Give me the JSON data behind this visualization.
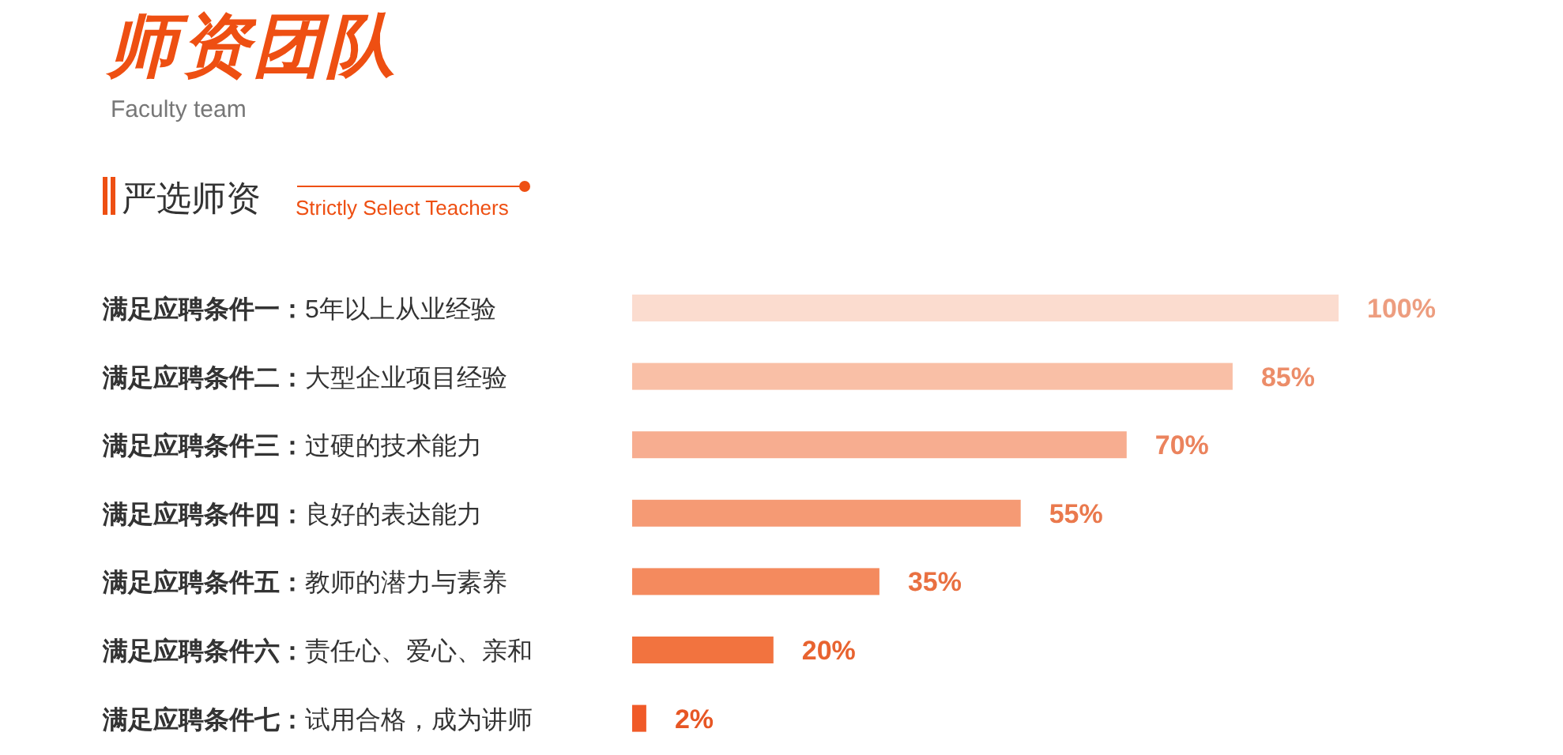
{
  "chart_data": {
    "type": "bar",
    "orientation": "horizontal",
    "title": "师资团队",
    "subtitle": "Faculty team",
    "annotations": [
      "严选师资",
      "Strictly Select Teachers"
    ],
    "categories": [
      "满足应聘条件一：5年以上从业经验",
      "满足应聘条件二：大型企业项目经验",
      "满足应聘条件三：过硬的技术能力",
      "满足应聘条件四：良好的表达能力",
      "满足应聘条件五：教师的潜力与素养",
      "满足应聘条件六：责任心、爱心、亲和",
      "满足应聘条件七：试用合格，成为讲师"
    ],
    "values": [
      100,
      85,
      70,
      55,
      35,
      20,
      2
    ],
    "value_labels": [
      "100%",
      "85%",
      "70%",
      "55%",
      "35%",
      "20%",
      "2%"
    ],
    "colors": [
      "#fbdccf",
      "#f9bfa6",
      "#f7ad90",
      "#f59a74",
      "#f48a5e",
      "#f2733f",
      "#f05a28"
    ],
    "xlim": [
      0,
      100
    ]
  }
}
